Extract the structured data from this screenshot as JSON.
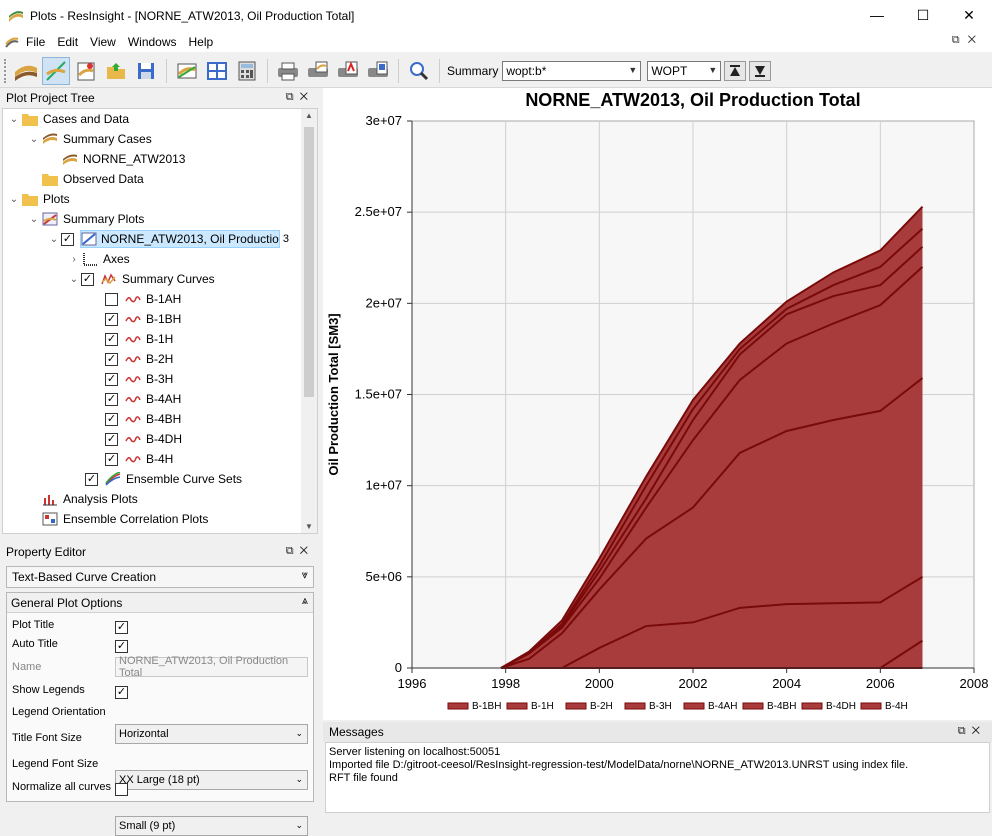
{
  "window": {
    "title": "Plots - ResInsight - [NORNE_ATW2013, Oil Production Total]",
    "controls": [
      "—",
      "☐",
      "✕"
    ]
  },
  "menu": {
    "items": [
      "File",
      "Edit",
      "View",
      "Windows",
      "Help"
    ]
  },
  "toolbar": {
    "summary_label": "Summary",
    "summary_filter": "wopt:b*",
    "vector": "WOPT"
  },
  "tree": {
    "title": "Plot Project Tree",
    "items": [
      {
        "label": "Cases and Data"
      },
      {
        "label": "Summary Cases"
      },
      {
        "label": "NORNE_ATW2013"
      },
      {
        "label": "Observed Data"
      },
      {
        "label": "Plots"
      },
      {
        "label": "Summary Plots"
      },
      {
        "label": "NORNE_ATW2013, Oil Productio",
        "badge": "3"
      },
      {
        "label": "Axes"
      },
      {
        "label": "Summary Curves"
      },
      {
        "label": "B-1AH"
      },
      {
        "label": "B-1BH"
      },
      {
        "label": "B-1H"
      },
      {
        "label": "B-2H"
      },
      {
        "label": "B-3H"
      },
      {
        "label": "B-4AH"
      },
      {
        "label": "B-4BH"
      },
      {
        "label": "B-4DH"
      },
      {
        "label": "B-4H"
      },
      {
        "label": "Ensemble Curve Sets"
      },
      {
        "label": "Analysis Plots"
      },
      {
        "label": "Ensemble Correlation Plots"
      }
    ]
  },
  "props": {
    "title": "Property Editor",
    "section1": "Text-Based Curve Creation",
    "group_title": "General Plot Options",
    "plot_title_label": "Plot Title",
    "auto_title_label": "Auto Title",
    "name_label": "Name",
    "name_value": "NORNE_ATW2013, Oil Production Total",
    "show_legends_label": "Show Legends",
    "legend_orientation_label": "Legend Orientation",
    "legend_orientation_value": "Horizontal",
    "title_font_label": "Title Font Size",
    "title_font_value": "XX Large (18 pt)",
    "legend_font_label": "Legend Font Size",
    "legend_font_value": "Small (9 pt)",
    "normalize_label": "Normalize all curves"
  },
  "messages": {
    "title": "Messages",
    "lines": [
      "Server listening on localhost:50051",
      "Imported file D:/gitroot-ceesol/ResInsight-regression-test/ModelData/norne\\NORNE_ATW2013.UNRST using index file.",
      "RFT file found"
    ]
  },
  "colors": {
    "curve_fill": "#a83c3c",
    "curve_line": "#7a0a0a",
    "plot_bg": "#f7f7f7",
    "selection": "#cce8ff"
  },
  "chart_data": {
    "type": "area",
    "title": "NORNE_ATW2013, Oil Production Total",
    "xlabel": "",
    "ylabel": "Oil Production Total [SM3]",
    "xlim": [
      1996,
      2008
    ],
    "ylim": [
      0,
      30000000
    ],
    "x_ticks": [
      "1996",
      "1998",
      "2000",
      "2002",
      "2004",
      "2006",
      "2008"
    ],
    "y_ticks": [
      "0",
      "5e+06",
      "1e+07",
      "1.5e+07",
      "2e+07",
      "2.5e+07",
      "3e+07"
    ],
    "grid": true,
    "legend_position": "bottom",
    "series": [
      {
        "name": "B-1BH",
        "points": [
          [
            1997.9,
            0
          ],
          [
            1998.5,
            0
          ],
          [
            1999.2,
            0
          ],
          [
            2000,
            0
          ],
          [
            2001,
            0
          ],
          [
            2002,
            0
          ],
          [
            2003,
            0
          ],
          [
            2004,
            0
          ],
          [
            2005,
            0
          ],
          [
            2006,
            0
          ],
          [
            2006.9,
            0
          ]
        ]
      },
      {
        "name": "B-1H",
        "points": [
          [
            1997.9,
            0
          ],
          [
            1998.5,
            0
          ],
          [
            1999.2,
            0
          ],
          [
            2000,
            0
          ],
          [
            2001,
            0
          ],
          [
            2002,
            0
          ],
          [
            2003,
            0
          ],
          [
            2004,
            0
          ],
          [
            2005,
            0
          ],
          [
            2006,
            0
          ],
          [
            2006.9,
            1500000
          ]
        ]
      },
      {
        "name": "B-2H",
        "points": [
          [
            1997.9,
            0
          ],
          [
            1998.5,
            0
          ],
          [
            1999.2,
            0
          ],
          [
            2000,
            1100000
          ],
          [
            2001,
            2300000
          ],
          [
            2002,
            2500000
          ],
          [
            2003,
            3300000
          ],
          [
            2004,
            3500000
          ],
          [
            2005,
            3550000
          ],
          [
            2006,
            3600000
          ],
          [
            2006.9,
            5000000
          ]
        ]
      },
      {
        "name": "B-3H",
        "points": [
          [
            1997.9,
            0
          ],
          [
            1998.5,
            500000
          ],
          [
            1999.2,
            1900000
          ],
          [
            2000,
            4300000
          ],
          [
            2001,
            7100000
          ],
          [
            2002,
            8800000
          ],
          [
            2003,
            11800000
          ],
          [
            2004,
            13000000
          ],
          [
            2005,
            13600000
          ],
          [
            2006,
            14100000
          ],
          [
            2006.9,
            15900000
          ]
        ]
      },
      {
        "name": "B-4AH",
        "points": [
          [
            1997.9,
            0
          ],
          [
            1998.5,
            800000
          ],
          [
            1999.2,
            2200000
          ],
          [
            2000,
            4900000
          ],
          [
            2001,
            8800000
          ],
          [
            2002,
            12500000
          ],
          [
            2003,
            15800000
          ],
          [
            2004,
            17800000
          ],
          [
            2005,
            18900000
          ],
          [
            2006,
            19900000
          ],
          [
            2006.9,
            22000000
          ]
        ]
      },
      {
        "name": "B-4BH",
        "points": [
          [
            1997.9,
            0
          ],
          [
            1998.5,
            800000
          ],
          [
            1999.2,
            2300000
          ],
          [
            2000,
            5300000
          ],
          [
            2001,
            9300000
          ],
          [
            2002,
            13600000
          ],
          [
            2003,
            17200000
          ],
          [
            2004,
            19400000
          ],
          [
            2005,
            20400000
          ],
          [
            2006,
            21000000
          ],
          [
            2006.9,
            23100000
          ]
        ]
      },
      {
        "name": "B-4DH",
        "points": [
          [
            1997.9,
            0
          ],
          [
            1998.5,
            800000
          ],
          [
            1999.2,
            2400000
          ],
          [
            2000,
            5600000
          ],
          [
            2001,
            10000000
          ],
          [
            2002,
            14200000
          ],
          [
            2003,
            17500000
          ],
          [
            2004,
            19700000
          ],
          [
            2005,
            21000000
          ],
          [
            2006,
            22000000
          ],
          [
            2006.9,
            24100000
          ]
        ]
      },
      {
        "name": "B-4H",
        "points": [
          [
            1997.9,
            0
          ],
          [
            1998.5,
            900000
          ],
          [
            1999.2,
            2600000
          ],
          [
            2000,
            6000000
          ],
          [
            2001,
            10500000
          ],
          [
            2002,
            14700000
          ],
          [
            2003,
            17800000
          ],
          [
            2004,
            20100000
          ],
          [
            2005,
            21700000
          ],
          [
            2006,
            22900000
          ],
          [
            2006.9,
            25300000
          ]
        ]
      }
    ]
  }
}
